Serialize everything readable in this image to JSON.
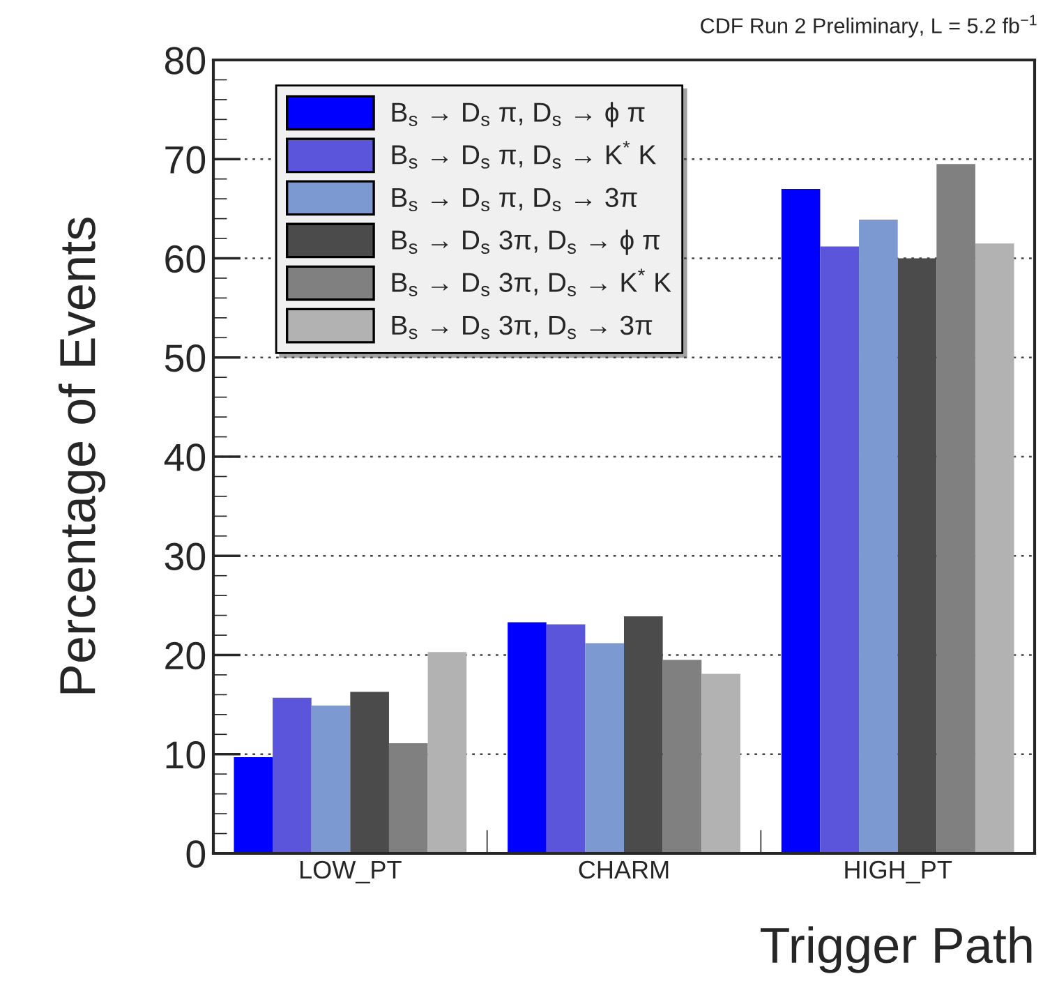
{
  "chart_data": {
    "type": "bar",
    "title": "CDF Run 2 Preliminary, L = 5.2 fb$^{−1}$",
    "xlabel": "Trigger Path",
    "ylabel": "Percentage of Events",
    "categories": [
      "LOW_PT",
      "CHARM",
      "HIGH_PT"
    ],
    "series": [
      {
        "name": "B$_{s}$ → D$_{s}$ π, D$_{s}$ → ϕ π",
        "color": "#0000ff",
        "values": [
          9.7,
          23.3,
          67.0
        ]
      },
      {
        "name": "B$_{s}$ → D$_{s}$ π, D$_{s}$ → K$^{*}$ K",
        "color": "#5a55db",
        "values": [
          15.7,
          23.1,
          61.2
        ]
      },
      {
        "name": "B$_{s}$ → D$_{s}$ π, D$_{s}$ → 3π",
        "color": "#7c99d2",
        "values": [
          14.9,
          21.2,
          63.9
        ]
      },
      {
        "name": "B$_{s}$ → D$_{s}$ 3π, D$_{s}$ → ϕ π",
        "color": "#4b4b4b",
        "values": [
          16.3,
          23.9,
          60.0
        ]
      },
      {
        "name": "B$_{s}$ → D$_{s}$ 3π, D$_{s}$ → K$^{*}$ K",
        "color": "#808080",
        "values": [
          11.1,
          19.5,
          69.5
        ]
      },
      {
        "name": "B$_{s}$ → D$_{s}$ 3π, D$_{s}$ → 3π",
        "color": "#b2b2b2",
        "values": [
          20.3,
          18.1,
          61.5
        ]
      }
    ],
    "ylim": [
      0,
      80
    ],
    "yticks": [
      0,
      10,
      20,
      30,
      40,
      50,
      60,
      70,
      80
    ],
    "grid": "y",
    "legend": "top left"
  }
}
